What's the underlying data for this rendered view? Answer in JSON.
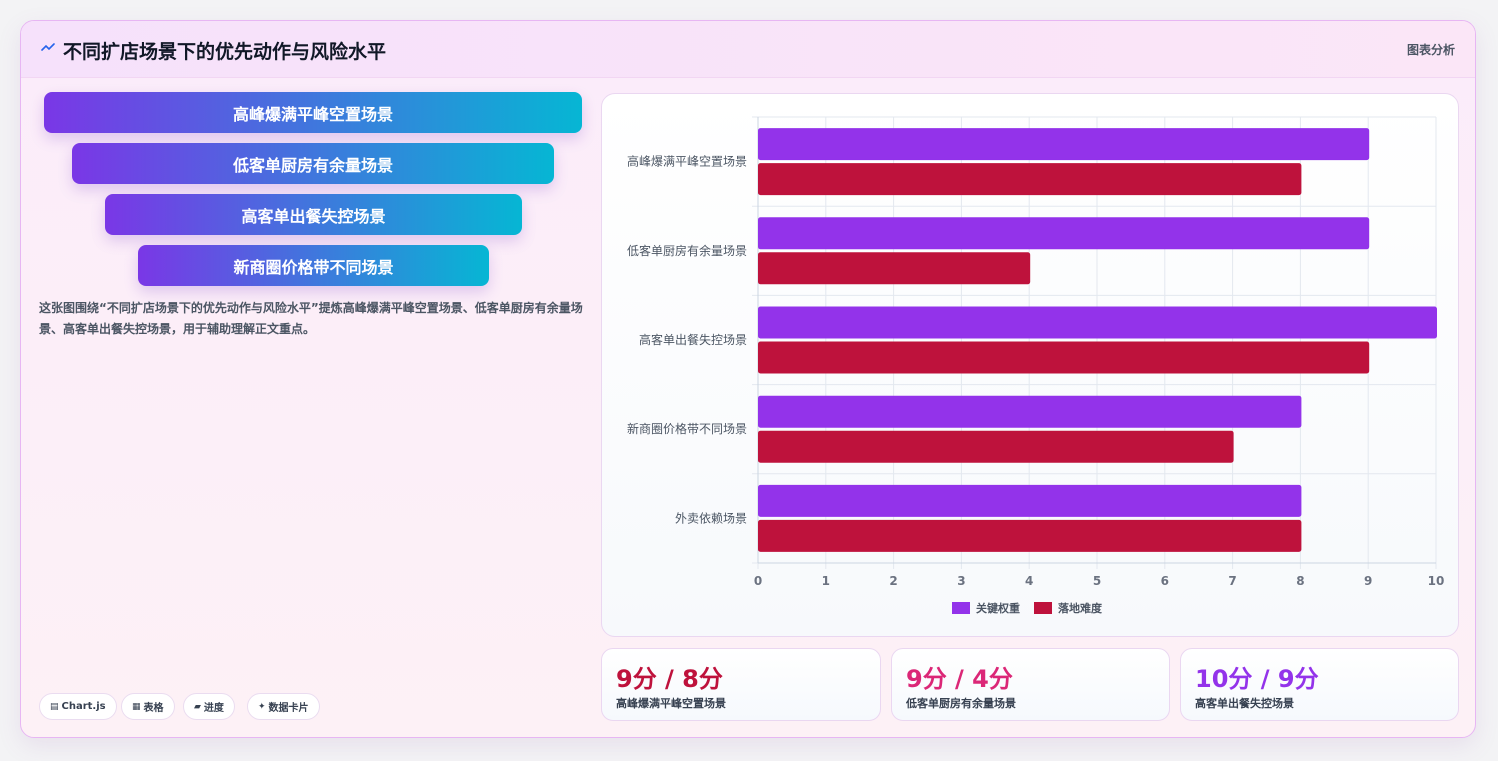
{
  "header": {
    "title": "不同扩店场景下的优先动作与风险水平",
    "link": "图表分析"
  },
  "funnel": [
    "高峰爆满平峰空置场景",
    "低客单厨房有余量场景",
    "高客单出餐失控场景",
    "新商圈价格带不同场景"
  ],
  "description": "这张图围绕“不同扩店场景下的优先动作与风险水平”提炼高峰爆满平峰空置场景、低客单厨房有余量场景、高客单出餐失控场景，用于辅助理解正文重点。",
  "chips": [
    {
      "icon": "▤",
      "icon_name": "chart-icon",
      "label": "Chart.js"
    },
    {
      "icon": "▦",
      "icon_name": "table-icon",
      "label": "表格"
    },
    {
      "icon": "▰",
      "icon_name": "progress-icon",
      "label": "进度"
    },
    {
      "icon": "✦",
      "icon_name": "sparkle-icon",
      "label": "数据卡片"
    }
  ],
  "chart_data": {
    "type": "bar",
    "orientation": "horizontal",
    "categories": [
      "高峰爆满平峰空置场景",
      "低客单厨房有余量场景",
      "高客单出餐失控场景",
      "新商圈价格带不同场景",
      "外卖依赖场景"
    ],
    "series": [
      {
        "name": "关键权重",
        "values": [
          9,
          9,
          10,
          8,
          8
        ],
        "color": "#9333ea"
      },
      {
        "name": "落地难度",
        "values": [
          8,
          4,
          9,
          7,
          8
        ],
        "color": "#be123c"
      }
    ],
    "xlim": [
      0,
      10
    ],
    "xticks": [
      "0",
      "1",
      "2",
      "3",
      "4",
      "5",
      "6",
      "7",
      "8",
      "9",
      "10"
    ],
    "grid": true,
    "legend": "bottom"
  },
  "stats": [
    {
      "value": "9分 / 8分",
      "label": "高峰爆满平峰空置场景",
      "color": "#be123c"
    },
    {
      "value": "9分 / 4分",
      "label": "低客单厨房有余量场景",
      "color": "#db2777"
    },
    {
      "value": "10分 / 9分",
      "label": "高客单出餐失控场景",
      "color": "#9333ea"
    }
  ]
}
